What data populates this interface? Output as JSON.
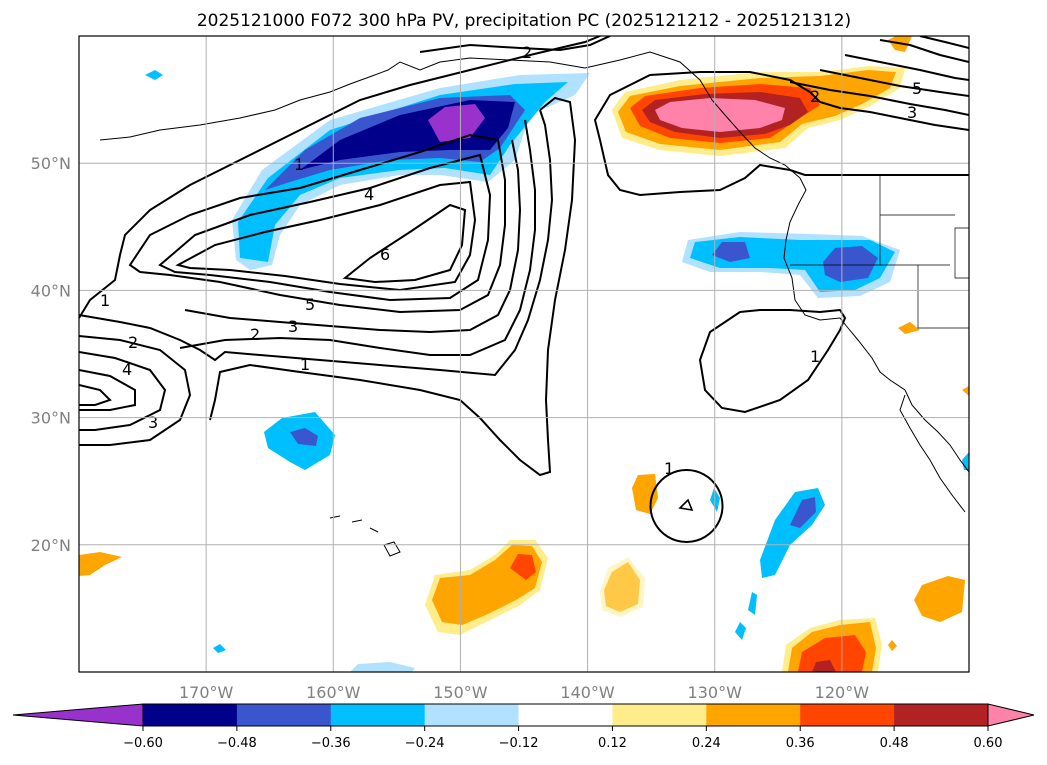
{
  "title": "2025121000 F072 300 hPa PV, precipitation PC (2025121212 - 2025121312)",
  "map": {
    "lon_range": [
      -180,
      -110
    ],
    "lat_range": [
      10,
      60
    ],
    "lon_ticks": [
      {
        "value": -170,
        "label": "170°W"
      },
      {
        "value": -160,
        "label": "160°W"
      },
      {
        "value": -150,
        "label": "150°W"
      },
      {
        "value": -140,
        "label": "140°W"
      },
      {
        "value": -130,
        "label": "130°W"
      },
      {
        "value": -120,
        "label": "120°W"
      }
    ],
    "lat_ticks": [
      {
        "value": 50,
        "label": "50°N"
      },
      {
        "value": 40,
        "label": "40°N"
      },
      {
        "value": 30,
        "label": "30°N"
      },
      {
        "value": 20,
        "label": "20°N"
      }
    ],
    "gridlines": true,
    "gridline_color": "#b0b0b0",
    "tick_label_color": "#808080"
  },
  "pv_contour_labels": [
    "2",
    "5",
    "3",
    "2",
    "1",
    "4",
    "6",
    "5",
    "3",
    "2",
    "1",
    "1",
    "2",
    "4",
    "3",
    "1",
    "1"
  ],
  "colorbar": {
    "orientation": "horizontal",
    "extend": "both",
    "boundaries": [
      -0.6,
      -0.48,
      -0.36,
      -0.24,
      -0.12,
      0.12,
      0.24,
      0.36,
      0.48,
      0.6
    ],
    "tick_labels": [
      "−0.60",
      "−0.48",
      "−0.36",
      "−0.24",
      "−0.12",
      "0.12",
      "0.24",
      "0.36",
      "0.48",
      "0.60"
    ],
    "colors": [
      "#9932cc",
      "#00008b",
      "#3a56cf",
      "#00bfff",
      "#b0e2ff",
      "#ffffff",
      "#ffec8b",
      "#ffa500",
      "#ff4500",
      "#b22222",
      "#ff82ab"
    ]
  }
}
